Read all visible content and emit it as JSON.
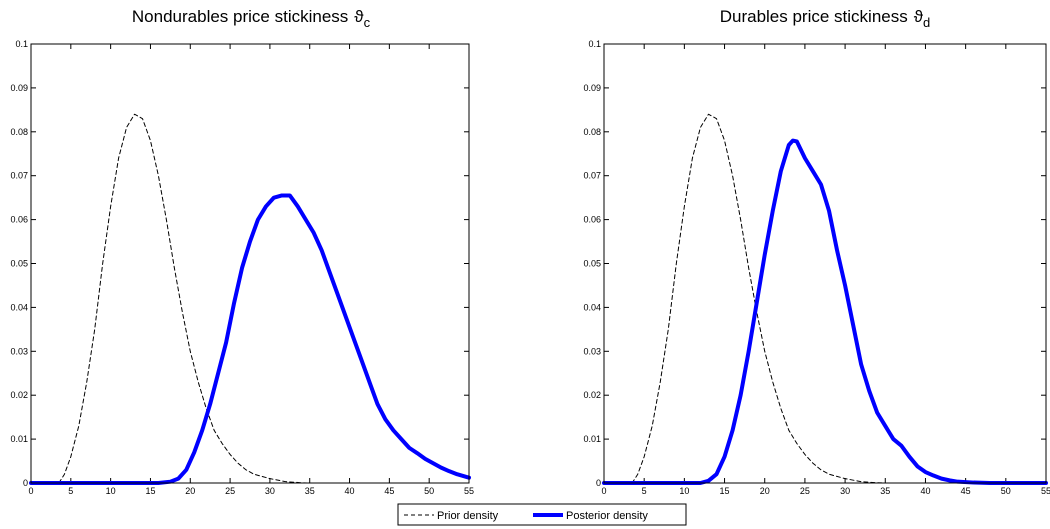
{
  "chart_data": [
    {
      "type": "line",
      "title": "Nondurables price stickiness",
      "title_symbol": "ϑ",
      "title_subscript": "c",
      "xlim": [
        0,
        55
      ],
      "ylim": [
        0,
        0.1
      ],
      "xticks": [
        "0",
        "5",
        "10",
        "15",
        "20",
        "25",
        "30",
        "35",
        "40",
        "45",
        "50",
        "55"
      ],
      "yticks": [
        "0",
        "0.01",
        "0.02",
        "0.03",
        "0.04",
        "0.05",
        "0.06",
        "0.07",
        "0.08",
        "0.09",
        "0.1"
      ],
      "grid": false,
      "series": [
        {
          "name": "Prior density",
          "style": "dashed",
          "color": "#000000",
          "points": [
            [
              0,
              0
            ],
            [
              3.5,
              0
            ],
            [
              4.2,
              0.002
            ],
            [
              5,
              0.006
            ],
            [
              6,
              0.013
            ],
            [
              7,
              0.023
            ],
            [
              8,
              0.035
            ],
            [
              9,
              0.05
            ],
            [
              10,
              0.063
            ],
            [
              11,
              0.074
            ],
            [
              12,
              0.081
            ],
            [
              13,
              0.084
            ],
            [
              14,
              0.083
            ],
            [
              15,
              0.078
            ],
            [
              16,
              0.07
            ],
            [
              17,
              0.06
            ],
            [
              18,
              0.049
            ],
            [
              19,
              0.039
            ],
            [
              20,
              0.03
            ],
            [
              21,
              0.023
            ],
            [
              22,
              0.017
            ],
            [
              23,
              0.012
            ],
            [
              24,
              0.009
            ],
            [
              25,
              0.0065
            ],
            [
              26,
              0.0045
            ],
            [
              27,
              0.003
            ],
            [
              28,
              0.002
            ],
            [
              30,
              0.001
            ],
            [
              32,
              0.0003
            ],
            [
              34,
              5e-05
            ],
            [
              35,
              0
            ]
          ]
        },
        {
          "name": "Posterior density",
          "style": "solid",
          "color": "#0000ff",
          "points": [
            [
              0,
              0
            ],
            [
              16,
              0
            ],
            [
              17.5,
              0.0003
            ],
            [
              18.5,
              0.001
            ],
            [
              19.5,
              0.003
            ],
            [
              20.5,
              0.007
            ],
            [
              21.5,
              0.012
            ],
            [
              22.5,
              0.018
            ],
            [
              23.5,
              0.025
            ],
            [
              24.5,
              0.032
            ],
            [
              25.5,
              0.041
            ],
            [
              26.5,
              0.049
            ],
            [
              27.5,
              0.055
            ],
            [
              28.5,
              0.06
            ],
            [
              29.5,
              0.063
            ],
            [
              30.5,
              0.065
            ],
            [
              31.5,
              0.0655
            ],
            [
              32.5,
              0.0655
            ],
            [
              33.5,
              0.063
            ],
            [
              34.5,
              0.06
            ],
            [
              35.5,
              0.057
            ],
            [
              36.5,
              0.053
            ],
            [
              37.5,
              0.048
            ],
            [
              38.5,
              0.043
            ],
            [
              39.5,
              0.038
            ],
            [
              40.5,
              0.033
            ],
            [
              41.5,
              0.028
            ],
            [
              42.5,
              0.023
            ],
            [
              43.5,
              0.018
            ],
            [
              44.5,
              0.0145
            ],
            [
              45.5,
              0.012
            ],
            [
              46.5,
              0.01
            ],
            [
              47.5,
              0.008
            ],
            [
              48.5,
              0.0068
            ],
            [
              49.5,
              0.0055
            ],
            [
              50.5,
              0.0045
            ],
            [
              51.5,
              0.0035
            ],
            [
              52.5,
              0.0027
            ],
            [
              53.5,
              0.002
            ],
            [
              55,
              0.0012
            ]
          ]
        }
      ]
    },
    {
      "type": "line",
      "title": "Durables price stickiness",
      "title_symbol": "ϑ",
      "title_subscript": "d",
      "xlim": [
        0,
        55
      ],
      "ylim": [
        0,
        0.1
      ],
      "xticks": [
        "0",
        "5",
        "10",
        "15",
        "20",
        "25",
        "30",
        "35",
        "40",
        "45",
        "50",
        "55"
      ],
      "yticks": [
        "0",
        "0.01",
        "0.02",
        "0.03",
        "0.04",
        "0.05",
        "0.06",
        "0.07",
        "0.08",
        "0.09",
        "0.1"
      ],
      "grid": false,
      "series": [
        {
          "name": "Prior density",
          "style": "dashed",
          "color": "#000000",
          "points": [
            [
              0,
              0
            ],
            [
              3.5,
              0
            ],
            [
              4.2,
              0.002
            ],
            [
              5,
              0.006
            ],
            [
              6,
              0.013
            ],
            [
              7,
              0.023
            ],
            [
              8,
              0.035
            ],
            [
              9,
              0.05
            ],
            [
              10,
              0.063
            ],
            [
              11,
              0.074
            ],
            [
              12,
              0.081
            ],
            [
              13,
              0.084
            ],
            [
              14,
              0.083
            ],
            [
              15,
              0.078
            ],
            [
              16,
              0.07
            ],
            [
              17,
              0.06
            ],
            [
              18,
              0.049
            ],
            [
              19,
              0.039
            ],
            [
              20,
              0.03
            ],
            [
              21,
              0.023
            ],
            [
              22,
              0.017
            ],
            [
              23,
              0.012
            ],
            [
              24,
              0.009
            ],
            [
              25,
              0.0065
            ],
            [
              26,
              0.0045
            ],
            [
              27,
              0.003
            ],
            [
              28,
              0.002
            ],
            [
              30,
              0.001
            ],
            [
              32,
              0.0003
            ],
            [
              34,
              5e-05
            ],
            [
              35,
              0
            ]
          ]
        },
        {
          "name": "Posterior density",
          "style": "solid",
          "color": "#0000ff",
          "points": [
            [
              0,
              0
            ],
            [
              12,
              0
            ],
            [
              13,
              0.0005
            ],
            [
              14,
              0.002
            ],
            [
              15,
              0.006
            ],
            [
              16,
              0.012
            ],
            [
              17,
              0.02
            ],
            [
              18,
              0.03
            ],
            [
              19,
              0.041
            ],
            [
              20,
              0.052
            ],
            [
              21,
              0.062
            ],
            [
              22,
              0.071
            ],
            [
              23,
              0.077
            ],
            [
              23.5,
              0.078
            ],
            [
              24,
              0.0778
            ],
            [
              25,
              0.074
            ],
            [
              26,
              0.071
            ],
            [
              27,
              0.068
            ],
            [
              28,
              0.062
            ],
            [
              29,
              0.053
            ],
            [
              30,
              0.045
            ],
            [
              31,
              0.036
            ],
            [
              32,
              0.027
            ],
            [
              33,
              0.021
            ],
            [
              34,
              0.016
            ],
            [
              35,
              0.013
            ],
            [
              36,
              0.01
            ],
            [
              37,
              0.0085
            ],
            [
              38,
              0.006
            ],
            [
              39,
              0.0038
            ],
            [
              40,
              0.0025
            ],
            [
              41,
              0.0017
            ],
            [
              42,
              0.001
            ],
            [
              43,
              0.0006
            ],
            [
              44,
              0.0003
            ],
            [
              46,
              0.0001
            ],
            [
              48,
              0
            ],
            [
              55,
              0
            ]
          ]
        }
      ]
    }
  ],
  "legend": {
    "items": [
      {
        "label": "Prior density",
        "style": "dashed",
        "color": "#000000"
      },
      {
        "label": "Posterior density",
        "style": "solid",
        "color": "#0000ff"
      }
    ]
  }
}
